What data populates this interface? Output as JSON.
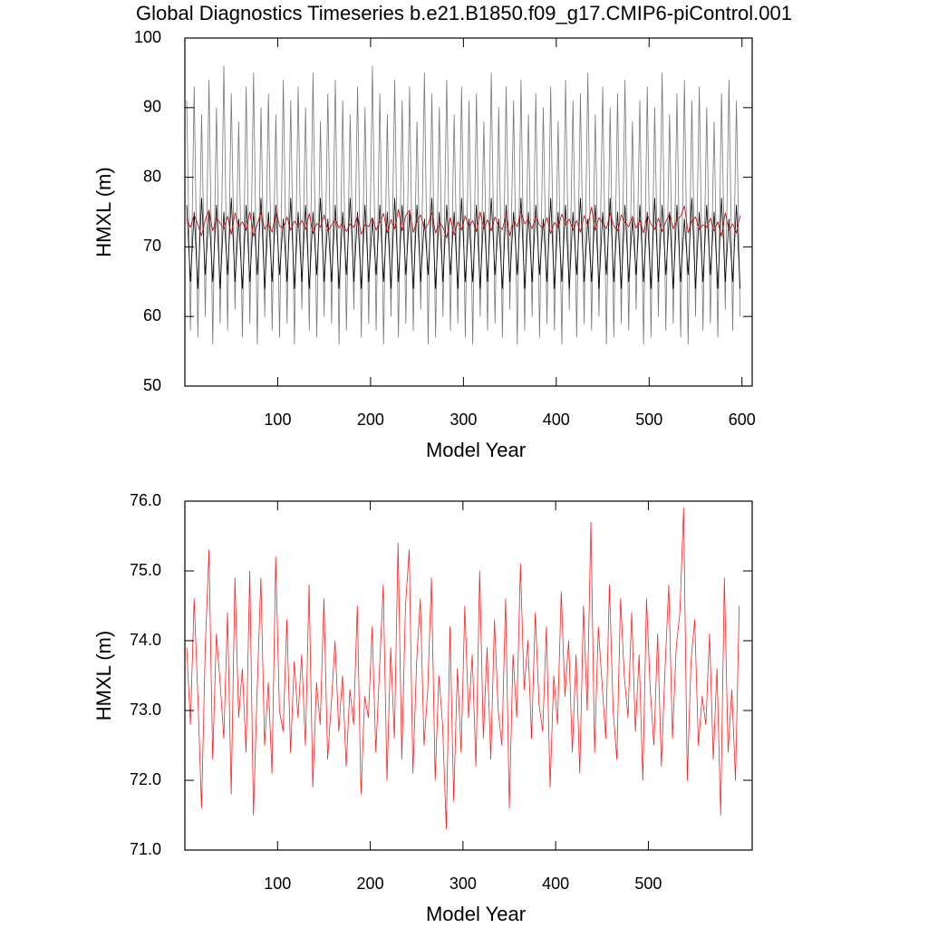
{
  "chart_data": [
    {
      "type": "line",
      "title": "Global Diagnostics Timeseries b.e21.B1850.f09_g17.CMIP6-piControl.001",
      "ylabel": "HMXL (m)",
      "xlabel": "Model Year",
      "xlim": [
        0,
        611
      ],
      "xticks": [
        100,
        200,
        300,
        400,
        500,
        600
      ],
      "ylim": [
        50,
        100
      ],
      "yticks": [
        50,
        60,
        70,
        80,
        90,
        100
      ],
      "x": [
        2,
        6,
        10,
        14,
        18,
        22,
        26,
        30,
        34,
        38,
        42,
        46,
        50,
        54,
        58,
        62,
        66,
        70,
        74,
        78,
        82,
        86,
        90,
        94,
        98,
        102,
        106,
        110,
        114,
        118,
        122,
        126,
        130,
        134,
        138,
        142,
        146,
        150,
        154,
        158,
        162,
        166,
        170,
        174,
        178,
        182,
        186,
        190,
        194,
        198,
        202,
        206,
        210,
        214,
        218,
        222,
        226,
        230,
        234,
        238,
        242,
        246,
        250,
        254,
        258,
        262,
        266,
        270,
        274,
        278,
        282,
        286,
        290,
        294,
        298,
        302,
        306,
        310,
        314,
        318,
        322,
        326,
        330,
        334,
        338,
        342,
        346,
        350,
        354,
        358,
        362,
        366,
        370,
        374,
        378,
        382,
        386,
        390,
        394,
        398,
        402,
        406,
        410,
        414,
        418,
        422,
        426,
        430,
        434,
        438,
        442,
        446,
        450,
        454,
        458,
        462,
        466,
        470,
        474,
        478,
        482,
        486,
        490,
        494,
        498,
        502,
        506,
        510,
        514,
        518,
        522,
        526,
        530,
        534,
        538,
        542,
        546,
        550,
        554,
        558,
        562,
        566,
        570,
        574,
        578,
        582,
        586,
        590,
        594,
        598
      ],
      "series": [
        {
          "color": "#777777",
          "values": [
            91,
            58,
            93,
            57,
            89,
            60,
            94,
            56,
            90,
            59,
            96,
            58,
            92,
            61,
            88,
            57,
            93,
            59,
            95,
            56,
            90,
            60,
            92,
            58,
            89,
            57,
            94,
            59,
            91,
            56,
            93,
            61,
            90,
            58,
            95,
            57,
            88,
            60,
            92,
            59,
            94,
            56,
            91,
            58,
            89,
            61,
            93,
            57,
            90,
            59,
            96,
            58,
            92,
            56,
            89,
            60,
            94,
            57,
            91,
            59,
            93,
            58,
            88,
            61,
            95,
            56,
            92,
            57,
            90,
            60,
            94,
            58,
            89,
            59,
            93,
            57,
            91,
            56,
            92,
            60,
            88,
            58,
            95,
            59,
            90,
            57,
            93,
            61,
            91,
            56,
            94,
            58,
            89,
            60,
            92,
            57,
            90,
            59,
            93,
            58,
            88,
            56,
            94,
            61,
            91,
            57,
            92,
            59,
            95,
            58,
            89,
            60,
            93,
            56,
            90,
            57,
            92,
            59,
            94,
            58,
            88,
            61,
            91,
            56,
            93,
            57,
            90,
            60,
            95,
            58,
            89,
            59,
            92,
            57,
            94,
            56,
            91,
            60,
            93,
            58,
            90,
            59,
            88,
            57,
            92,
            61,
            94,
            58,
            91,
            60
          ]
        },
        {
          "color": "#000000",
          "values": [
            76,
            65,
            75,
            64,
            77,
            66,
            75,
            65,
            76,
            64,
            75,
            66,
            77,
            65,
            74,
            64,
            76,
            65,
            75,
            66,
            77,
            64,
            75,
            65,
            76,
            66,
            74,
            65,
            77,
            64,
            75,
            65,
            76,
            64,
            75,
            66,
            77,
            65,
            74,
            65,
            76,
            64,
            75,
            66,
            77,
            65,
            75,
            64,
            76,
            65,
            74,
            66,
            76,
            65,
            75,
            64,
            77,
            65,
            76,
            66,
            75,
            64,
            76,
            65,
            74,
            66,
            77,
            64,
            75,
            65,
            76,
            66,
            75,
            64,
            77,
            65,
            74,
            65,
            76,
            64,
            75,
            65,
            77,
            66,
            74,
            64,
            76,
            65,
            75,
            66,
            77,
            64,
            75,
            65,
            76,
            66,
            74,
            65,
            77,
            64,
            75,
            65,
            76,
            64,
            75,
            66,
            77,
            65,
            74,
            65,
            76,
            64,
            75,
            66,
            77,
            65,
            75,
            64,
            76,
            65,
            74,
            66,
            76,
            65,
            75,
            64,
            77,
            65,
            76,
            66,
            75,
            64,
            76,
            65,
            74,
            66,
            77,
            64,
            75,
            65,
            76,
            66,
            75,
            64,
            77,
            65,
            74,
            65,
            76,
            64
          ]
        },
        {
          "color": "#c00000",
          "values": [
            73.9,
            72.8,
            74.6,
            73.2,
            71.6,
            73.9,
            75.3,
            72.3,
            74.1,
            73.4,
            72.6,
            74.4,
            71.8,
            74.9,
            72.9,
            73.6,
            72.4,
            75.0,
            71.5,
            73.3,
            74.9,
            72.5,
            73.4,
            72.1,
            75.2,
            73.0,
            72.7,
            74.3,
            72.4,
            73.7,
            72.9,
            73.8,
            72.5,
            74.8,
            71.9,
            73.4,
            72.8,
            74.6,
            72.3,
            73.1,
            74.0,
            72.7,
            73.5,
            72.2,
            73.3,
            72.8,
            74.5,
            71.8,
            73.2,
            72.9,
            74.2,
            72.4,
            73.6,
            74.8,
            72.0,
            73.9,
            72.6,
            75.4,
            72.3,
            74.5,
            75.3,
            72.1,
            73.7,
            74.6,
            72.5,
            73.3,
            74.9,
            72.0,
            73.5,
            72.8,
            71.3,
            74.2,
            71.7,
            73.6,
            72.4,
            74.5,
            72.9,
            73.8,
            72.2,
            75.0,
            72.6,
            73.9,
            72.3,
            74.3,
            73.0,
            72.5,
            74.6,
            71.6,
            73.8,
            72.9,
            75.1,
            73.3,
            74.0,
            72.6,
            74.4,
            73.1,
            72.7,
            74.2,
            71.9,
            73.5,
            72.8,
            74.7,
            73.2,
            74.0,
            72.4,
            73.8,
            72.1,
            74.5,
            73.0,
            75.7,
            72.4,
            74.2,
            73.4,
            72.6,
            74.8,
            73.0,
            72.3,
            74.6,
            73.5,
            72.9,
            74.4,
            72.7,
            73.8,
            72.0,
            74.6,
            73.3,
            72.5,
            74.1,
            72.2,
            73.6,
            74.8,
            72.6,
            73.9,
            74.4,
            75.9,
            72.0,
            73.7,
            74.3,
            72.5,
            73.2,
            72.8,
            74.1,
            72.3,
            73.6,
            71.5,
            74.9,
            72.4,
            73.3,
            72.0,
            74.5
          ]
        }
      ]
    },
    {
      "type": "line",
      "ylabel": "HMXL (m)",
      "xlabel": "Model Year",
      "xlim": [
        0,
        612
      ],
      "xticks": [
        100,
        200,
        300,
        400,
        500
      ],
      "ylim": [
        71,
        76
      ],
      "yticks": [
        {
          "value": 71,
          "label": "71.0"
        },
        {
          "value": 72,
          "label": "72.0"
        },
        {
          "value": 73,
          "label": "73.0"
        },
        {
          "value": 74,
          "label": "74.0"
        },
        {
          "value": 75,
          "label": "75.0"
        },
        {
          "value": 76,
          "label": "76.0"
        }
      ],
      "x": [
        2,
        6,
        10,
        14,
        18,
        22,
        26,
        30,
        34,
        38,
        42,
        46,
        50,
        54,
        58,
        62,
        66,
        70,
        74,
        78,
        82,
        86,
        90,
        94,
        98,
        102,
        106,
        110,
        114,
        118,
        122,
        126,
        130,
        134,
        138,
        142,
        146,
        150,
        154,
        158,
        162,
        166,
        170,
        174,
        178,
        182,
        186,
        190,
        194,
        198,
        202,
        206,
        210,
        214,
        218,
        222,
        226,
        230,
        234,
        238,
        242,
        246,
        250,
        254,
        258,
        262,
        266,
        270,
        274,
        278,
        282,
        286,
        290,
        294,
        298,
        302,
        306,
        310,
        314,
        318,
        322,
        326,
        330,
        334,
        338,
        342,
        346,
        350,
        354,
        358,
        362,
        366,
        370,
        374,
        378,
        382,
        386,
        390,
        394,
        398,
        402,
        406,
        410,
        414,
        418,
        422,
        426,
        430,
        434,
        438,
        442,
        446,
        450,
        454,
        458,
        462,
        466,
        470,
        474,
        478,
        482,
        486,
        490,
        494,
        498,
        502,
        506,
        510,
        514,
        518,
        522,
        526,
        530,
        534,
        538,
        542,
        546,
        550,
        554,
        558,
        562,
        566,
        570,
        574,
        578,
        582,
        586,
        590,
        594,
        598
      ],
      "series": [
        {
          "color": "#ff2020",
          "values": [
            73.9,
            72.8,
            74.6,
            73.2,
            71.6,
            73.9,
            75.3,
            72.3,
            74.1,
            73.4,
            72.6,
            74.4,
            71.8,
            74.9,
            72.9,
            73.6,
            72.4,
            75.0,
            71.5,
            73.3,
            74.9,
            72.5,
            73.4,
            72.1,
            75.2,
            73.0,
            72.7,
            74.3,
            72.4,
            73.7,
            72.9,
            73.8,
            72.5,
            74.8,
            71.9,
            73.4,
            72.8,
            74.6,
            72.3,
            73.1,
            74.0,
            72.7,
            73.5,
            72.2,
            73.3,
            72.8,
            74.5,
            71.8,
            73.2,
            72.9,
            74.2,
            72.4,
            73.6,
            74.8,
            72.0,
            73.9,
            72.6,
            75.4,
            72.3,
            74.5,
            75.3,
            72.1,
            73.7,
            74.6,
            72.5,
            73.3,
            74.9,
            72.0,
            73.5,
            72.8,
            71.3,
            74.2,
            71.7,
            73.6,
            72.4,
            74.5,
            72.9,
            73.8,
            72.2,
            75.0,
            72.6,
            73.9,
            72.3,
            74.3,
            73.0,
            72.5,
            74.6,
            71.6,
            73.8,
            72.9,
            75.1,
            73.3,
            74.0,
            72.6,
            74.4,
            73.1,
            72.7,
            74.2,
            71.9,
            73.5,
            72.8,
            74.7,
            73.2,
            74.0,
            72.4,
            73.8,
            72.1,
            74.5,
            73.0,
            75.7,
            72.4,
            74.2,
            73.4,
            72.6,
            74.8,
            73.0,
            72.3,
            74.6,
            73.5,
            72.9,
            74.4,
            72.7,
            73.8,
            72.0,
            74.6,
            73.3,
            72.5,
            74.1,
            72.2,
            73.6,
            74.8,
            72.6,
            73.9,
            74.4,
            75.9,
            72.0,
            73.7,
            74.3,
            72.5,
            73.2,
            72.8,
            74.1,
            72.3,
            73.6,
            71.5,
            74.9,
            72.4,
            73.3,
            72.0,
            74.5
          ]
        }
      ]
    }
  ]
}
